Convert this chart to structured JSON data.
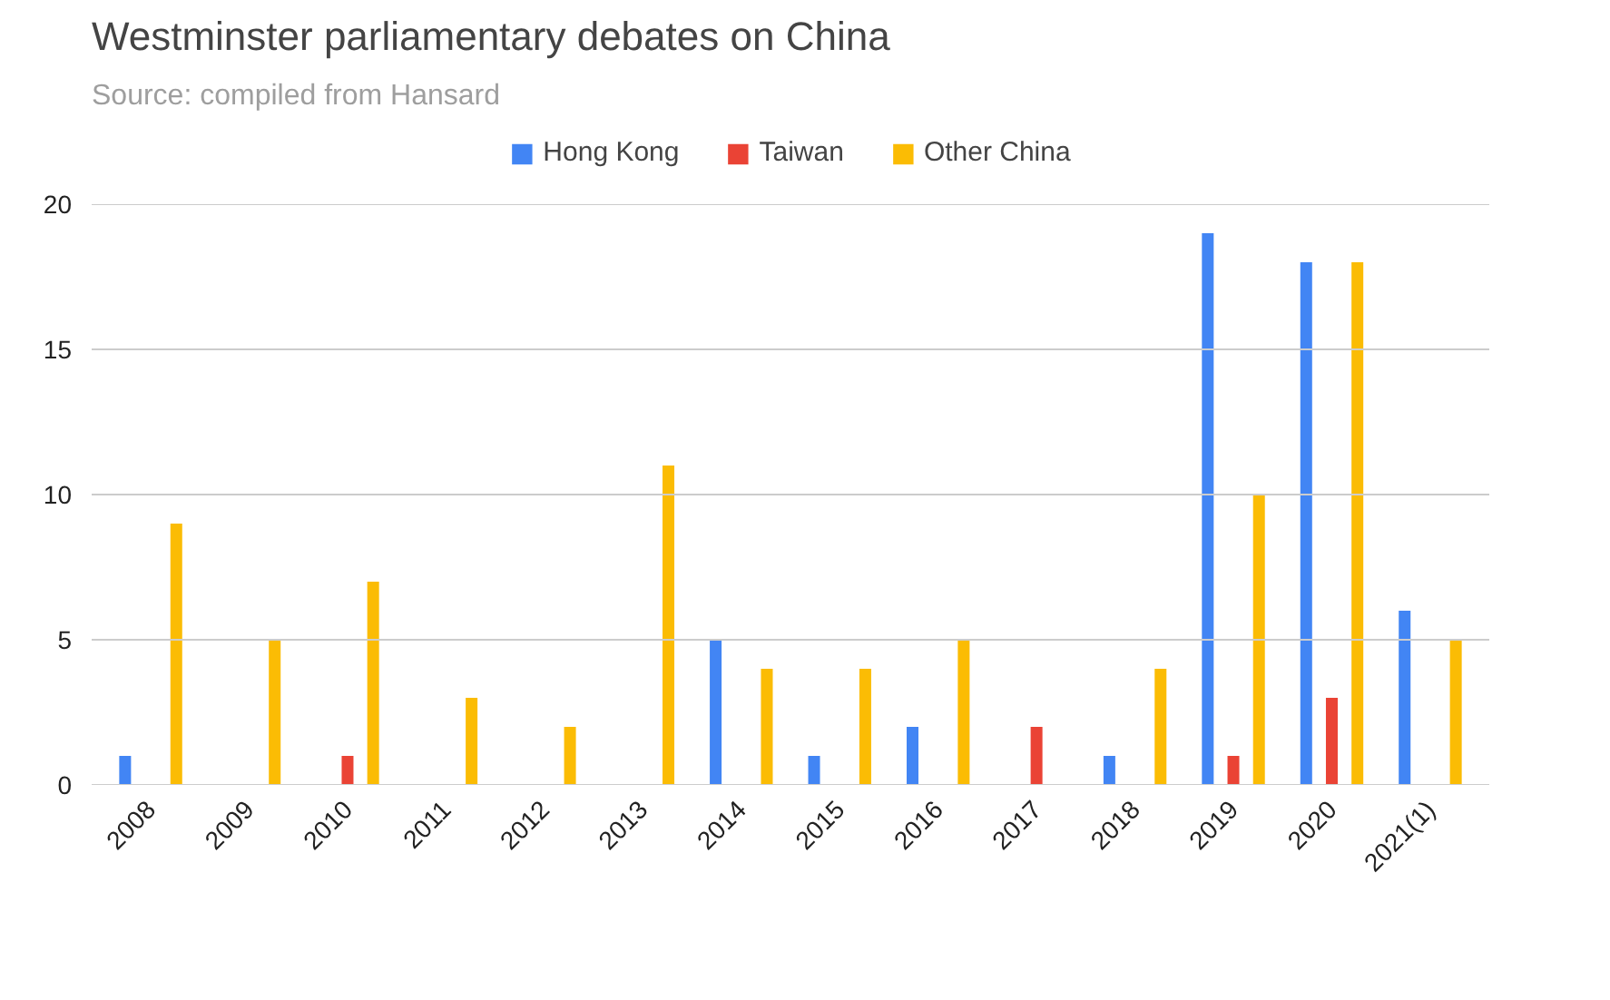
{
  "chart_data": {
    "type": "bar",
    "title": "Westminster parliamentary debates on China",
    "subtitle": "Source: compiled from Hansard",
    "categories": [
      "2008",
      "2009",
      "2010",
      "2011",
      "2012",
      "2013",
      "2014",
      "2015",
      "2016",
      "2017",
      "2018",
      "2019",
      "2020",
      "2021(1)"
    ],
    "series": [
      {
        "name": "Hong Kong",
        "color": "#4285f4",
        "values": [
          1,
          0,
          0,
          0,
          0,
          0,
          5,
          1,
          2,
          0,
          1,
          19,
          18,
          6
        ]
      },
      {
        "name": "Taiwan",
        "color": "#ea4335",
        "values": [
          0,
          0,
          1,
          0,
          0,
          0,
          0,
          0,
          0,
          2,
          0,
          1,
          3,
          0
        ]
      },
      {
        "name": "Other China",
        "color": "#fbbc04",
        "values": [
          9,
          5,
          7,
          3,
          2,
          11,
          4,
          4,
          5,
          0,
          4,
          10,
          18,
          5
        ]
      }
    ],
    "ylim": [
      0,
      20
    ],
    "yticks": [
      0,
      5,
      10,
      15,
      20
    ],
    "grid": "y",
    "legend": "top"
  }
}
